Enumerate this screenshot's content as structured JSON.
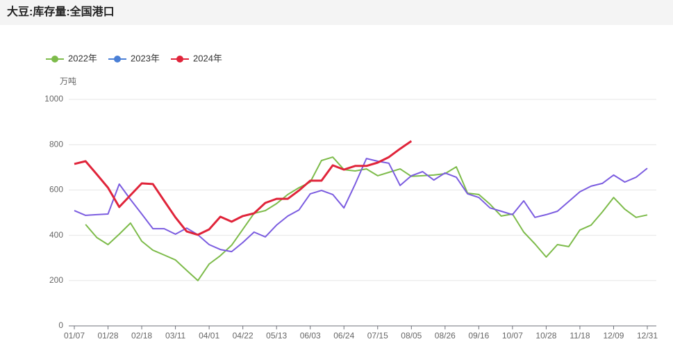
{
  "chart_data": {
    "type": "line",
    "title": "大豆:库存量:全国港口",
    "y_axis_label": "万吨",
    "categories": [
      "01/07",
      null,
      null,
      "01/28",
      null,
      null,
      "02/18",
      null,
      null,
      "03/11",
      null,
      null,
      "04/01",
      null,
      null,
      "04/22",
      null,
      null,
      "05/13",
      null,
      null,
      "06/03",
      null,
      null,
      "06/24",
      null,
      null,
      "07/15",
      null,
      null,
      "08/05",
      null,
      null,
      "08/26",
      null,
      null,
      "09/16",
      null,
      null,
      "10/07",
      null,
      null,
      "10/28",
      null,
      null,
      "11/18",
      null,
      null,
      "12/09",
      null,
      null,
      "12/31"
    ],
    "ylim": [
      0,
      1000
    ],
    "yticks": [
      0,
      200,
      400,
      600,
      800,
      1000
    ],
    "grid": true,
    "legend": "top-left",
    "series": [
      {
        "name": "2022年",
        "color": "#7dbb4a",
        "legend_color": "#7dbb4a",
        "width": 2,
        "values": [
          null,
          448,
          390,
          359,
          405,
          454,
          374,
          334,
          313,
          291,
          245,
          200,
          273,
          310,
          356,
          426,
          497,
          509,
          540,
          580,
          610,
          635,
          730,
          745,
          690,
          684,
          693,
          663,
          678,
          693,
          660,
          663,
          666,
          672,
          702,
          586,
          580,
          537,
          485,
          494,
          414,
          362,
          304,
          359,
          350,
          423,
          445,
          503,
          567,
          515,
          479,
          490
        ]
      },
      {
        "name": "2023年",
        "color": "#7b5ce0",
        "legend_color": "#4a7fd6",
        "width": 2,
        "values": [
          509,
          488,
          491,
          494,
          626,
          558,
          494,
          429,
          429,
          405,
          432,
          402,
          359,
          337,
          328,
          368,
          414,
          393,
          445,
          485,
          512,
          583,
          598,
          580,
          521,
          626,
          739,
          727,
          718,
          620,
          663,
          681,
          644,
          675,
          656,
          583,
          567,
          521,
          506,
          491,
          552,
          479,
          491,
          506,
          549,
          592,
          617,
          629,
          666,
          635,
          656,
          696
        ]
      },
      {
        "name": "2024年",
        "color": "#e0243a",
        "legend_color": "#e0243a",
        "width": 3,
        "values": [
          715,
          727,
          669,
          610,
          525,
          577,
          629,
          626,
          552,
          479,
          417,
          402,
          426,
          482,
          460,
          485,
          497,
          543,
          561,
          561,
          598,
          641,
          641,
          709,
          690,
          706,
          706,
          721,
          745,
          782,
          816,
          null,
          null,
          null,
          null,
          null,
          null,
          null,
          null,
          null,
          null,
          null,
          null,
          null,
          null,
          null,
          null,
          null,
          null,
          null,
          null,
          null
        ]
      }
    ]
  }
}
